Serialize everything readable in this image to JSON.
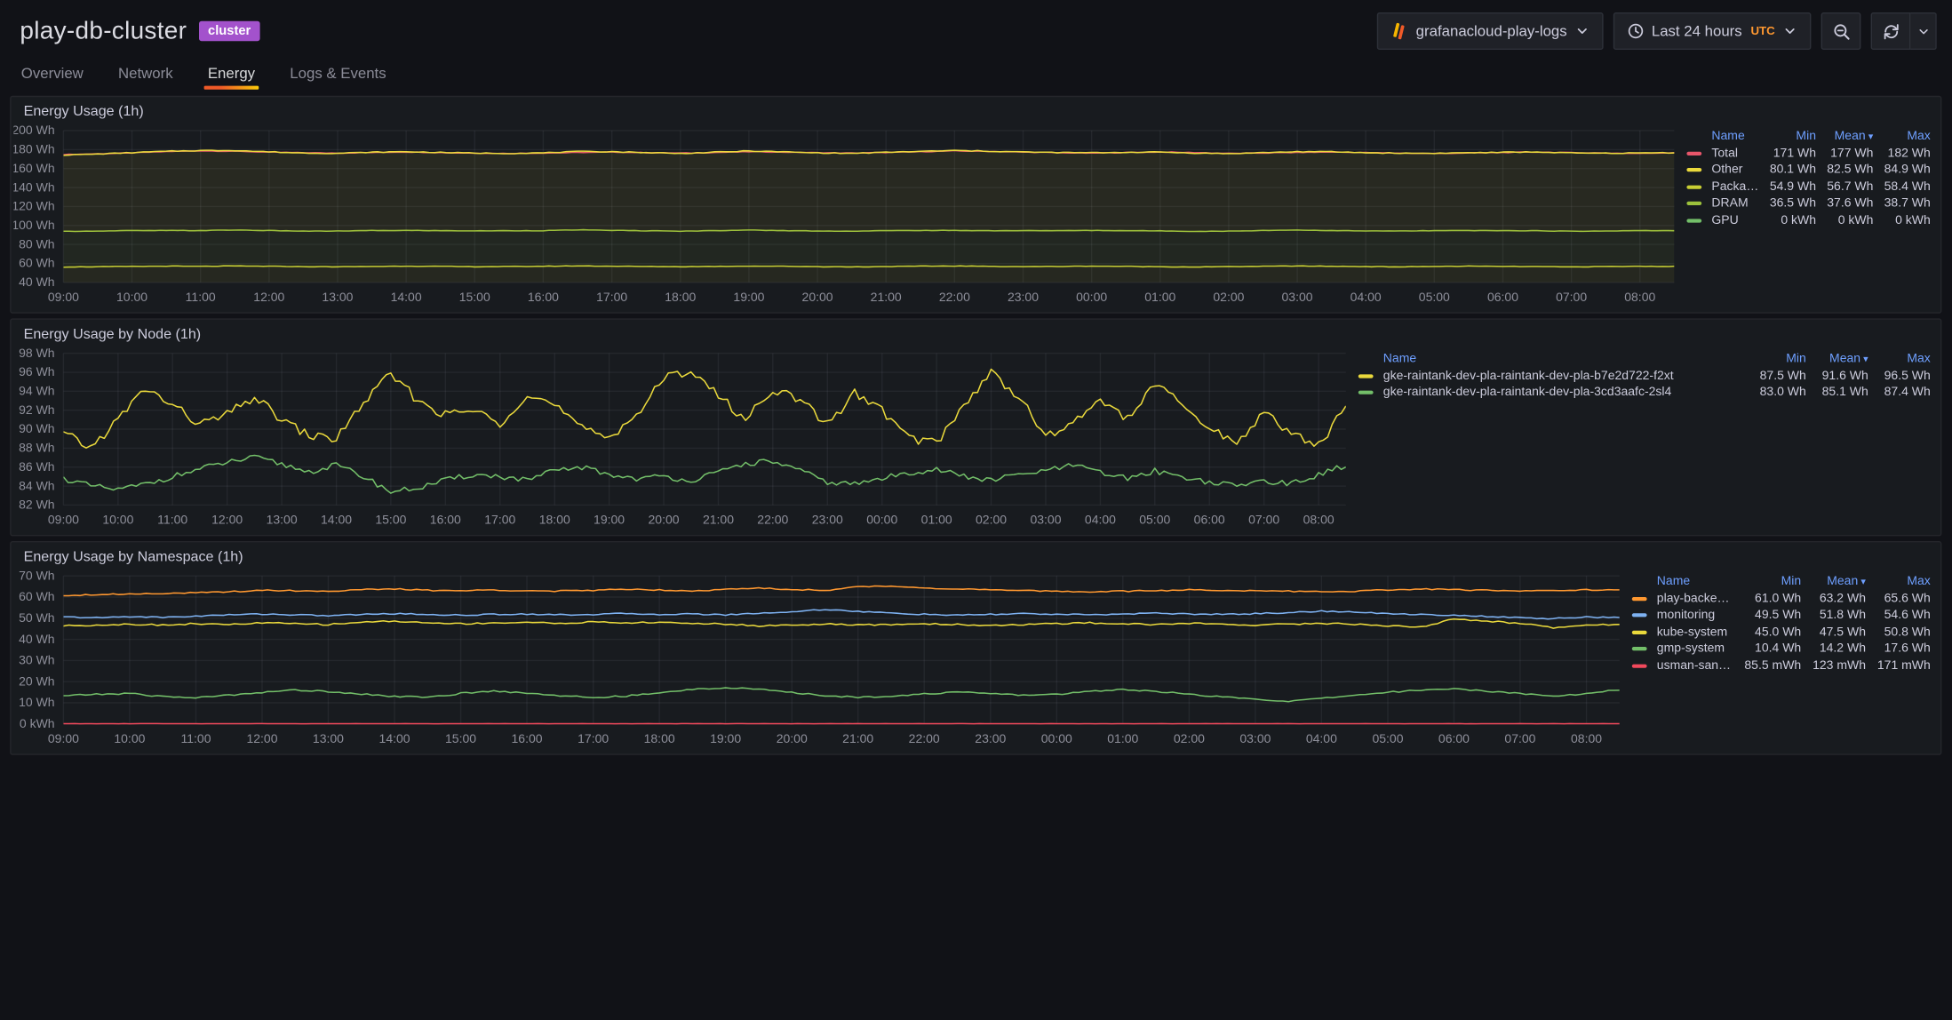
{
  "header": {
    "title": "play-db-cluster",
    "badge": "cluster",
    "datasource_label": "grafanacloud-play-logs",
    "time_range": "Last 24 hours",
    "timezone": "UTC"
  },
  "tabs": [
    {
      "id": "overview",
      "label": "Overview",
      "active": false
    },
    {
      "id": "network",
      "label": "Network",
      "active": false
    },
    {
      "id": "energy",
      "label": "Energy",
      "active": true
    },
    {
      "id": "logs-events",
      "label": "Logs & Events",
      "active": false
    }
  ],
  "colors": {
    "accent_orange": "#FF9830",
    "link_blue": "#6E9FFF",
    "badge_purple": "#A352CC",
    "panel_bg": "#181B1F",
    "page_bg": "#111217"
  },
  "legend_columns": [
    "Name",
    "Min",
    "Mean",
    "Max"
  ],
  "sort": {
    "column": "Mean",
    "dir": "desc"
  },
  "panels": [
    {
      "id": "energy-usage",
      "title": "Energy Usage (1h)",
      "legend_rows": [
        {
          "name": "Total",
          "color": "#E8566B",
          "min": "171 Wh",
          "mean": "177 Wh",
          "max": "182 Wh"
        },
        {
          "name": "Other",
          "color": "#EAD93C",
          "min": "80.1 Wh",
          "mean": "82.5 Wh",
          "max": "84.9 Wh"
        },
        {
          "name": "Package",
          "color": "#C9CF34",
          "min": "54.9 Wh",
          "mean": "56.7 Wh",
          "max": "58.4 Wh"
        },
        {
          "name": "DRAM",
          "color": "#9DC23C",
          "min": "36.5 Wh",
          "mean": "37.6 Wh",
          "max": "38.7 Wh"
        },
        {
          "name": "GPU",
          "color": "#73BF69",
          "min": "0 kWh",
          "mean": "0 kWh",
          "max": "0 kWh"
        }
      ]
    },
    {
      "id": "energy-usage-by-node",
      "title": "Energy Usage by Node (1h)",
      "legend_rows": [
        {
          "name": "gke-raintank-dev-pla-raintank-dev-pla-b7e2d722-f2xt",
          "color": "#EAD93C",
          "min": "87.5 Wh",
          "mean": "91.6 Wh",
          "max": "96.5 Wh"
        },
        {
          "name": "gke-raintank-dev-pla-raintank-dev-pla-3cd3aafc-2sl4",
          "color": "#73BF69",
          "min": "83.0 Wh",
          "mean": "85.1 Wh",
          "max": "87.4 Wh"
        }
      ]
    },
    {
      "id": "energy-usage-by-namespace",
      "title": "Energy Usage by Namespace (1h)",
      "legend_rows": [
        {
          "name": "play-backends",
          "color": "#FF9830",
          "min": "61.0 Wh",
          "mean": "63.2 Wh",
          "max": "65.6 Wh"
        },
        {
          "name": "monitoring",
          "color": "#7EB2F2",
          "min": "49.5 Wh",
          "mean": "51.8 Wh",
          "max": "54.6 Wh"
        },
        {
          "name": "kube-system",
          "color": "#EAD93C",
          "min": "45.0 Wh",
          "mean": "47.5 Wh",
          "max": "50.8 Wh"
        },
        {
          "name": "gmp-system",
          "color": "#73BF69",
          "min": "10.4 Wh",
          "mean": "14.2 Wh",
          "max": "17.6 Wh"
        },
        {
          "name": "usman-sandbox",
          "color": "#F2495C",
          "min": "85.5 mWh",
          "mean": "123 mWh",
          "max": "171 mWh"
        }
      ]
    }
  ],
  "chart_data": [
    {
      "type": "line",
      "title": "Energy Usage (1h)",
      "ylim": [
        40,
        200
      ],
      "x_span_hours": 23.5,
      "x_ticks": [
        "09:00",
        "10:00",
        "11:00",
        "12:00",
        "13:00",
        "14:00",
        "15:00",
        "16:00",
        "17:00",
        "18:00",
        "19:00",
        "20:00",
        "21:00",
        "22:00",
        "23:00",
        "00:00",
        "01:00",
        "02:00",
        "03:00",
        "04:00",
        "05:00",
        "06:00",
        "07:00",
        "08:00"
      ],
      "y_ticks": [
        {
          "label": "200 Wh",
          "value": 200
        },
        {
          "label": "180 Wh",
          "value": 180
        },
        {
          "label": "160 Wh",
          "value": 160
        },
        {
          "label": "140 Wh",
          "value": 140
        },
        {
          "label": "120 Wh",
          "value": 120
        },
        {
          "label": "100 Wh",
          "value": 100
        },
        {
          "label": "80 Wh",
          "value": 80
        },
        {
          "label": "60 Wh",
          "value": 60
        },
        {
          "label": "40 Wh",
          "value": 40
        }
      ],
      "series": [
        {
          "name": "Total",
          "color": "#E8566B",
          "jitter": 0.3,
          "values": [
            174.9,
            175.5,
            176.5,
            177.9,
            178.7,
            178.2,
            177.3,
            176.7,
            176.3,
            176.9,
            177.4,
            176.8,
            176.3,
            175.9,
            176.4,
            176.9,
            177.3,
            176.8,
            176.3,
            176.9,
            177.7,
            177.3,
            176.7,
            176.3,
            176.9,
            177.7,
            178.6,
            178.1,
            177.3,
            176.7,
            176.3,
            176.9,
            177.4,
            176.9,
            176.0,
            176.4,
            176.9,
            177.4,
            176.8,
            176.3,
            175.9,
            176.4,
            176.9,
            177.4,
            176.8,
            176.3,
            176.0,
            176.7
          ]
        },
        {
          "name": "GPU",
          "color": "#73BF69",
          "jitter": 0,
          "values": [
            0,
            0,
            0,
            0,
            0,
            0,
            0,
            0,
            0,
            0,
            0,
            0,
            0,
            0,
            0,
            0,
            0,
            0,
            0,
            0,
            0,
            0,
            0,
            0,
            0,
            0,
            0,
            0,
            0,
            0,
            0,
            0,
            0,
            0,
            0,
            0,
            0,
            0,
            0,
            0,
            0,
            0,
            0,
            0,
            0,
            0,
            0,
            0
          ]
        },
        {
          "name": "Package",
          "color": "#C9CF34",
          "stack_order": 1,
          "fill": 0.08,
          "jitter": 0.25,
          "values": [
            56.2,
            56.5,
            56.8,
            57.1,
            56.9,
            57.3,
            57.0,
            56.6,
            56.4,
            56.8,
            57.2,
            56.9,
            56.5,
            56.7,
            57.0,
            57.4,
            57.1,
            56.8,
            56.5,
            56.9,
            57.2,
            57.0,
            56.6,
            56.3,
            56.7,
            57.1,
            57.3,
            56.9,
            56.6,
            56.8,
            57.2,
            56.9,
            56.5,
            56.2,
            56.6,
            57.0,
            57.3,
            57.0,
            56.7,
            56.4,
            56.8,
            57.1,
            56.9,
            56.6,
            56.3,
            56.7,
            57.0,
            56.8
          ]
        },
        {
          "name": "DRAM",
          "color": "#9DC23C",
          "stack_order": 2,
          "fill": 0.08,
          "jitter": 0.2,
          "values": [
            37.5,
            37.6,
            37.8,
            37.5,
            37.7,
            37.9,
            37.6,
            37.4,
            37.7,
            37.8,
            37.5,
            37.6,
            37.8,
            37.7,
            37.5,
            37.9,
            37.7,
            37.6,
            37.4,
            37.7,
            37.9,
            37.6,
            37.5,
            37.7,
            37.8,
            37.6,
            37.4,
            37.6,
            37.9,
            37.7,
            37.5,
            37.6,
            37.8,
            37.5,
            37.4,
            37.7,
            37.9,
            37.6,
            37.5,
            37.8,
            37.7,
            37.5,
            37.6,
            37.8,
            37.6,
            37.4,
            37.7,
            37.6
          ]
        },
        {
          "name": "Other",
          "color": "#EAD93C",
          "stack_order": 3,
          "fill": 0.08,
          "jitter": 0.45,
          "values": [
            80.6,
            81.2,
            82.2,
            83.6,
            84.4,
            83.9,
            83.0,
            82.4,
            82.0,
            82.6,
            83.1,
            82.5,
            82.0,
            81.6,
            82.1,
            82.6,
            83.0,
            82.5,
            82.0,
            82.6,
            83.4,
            83.0,
            82.4,
            82.0,
            82.6,
            83.4,
            84.3,
            83.8,
            83.0,
            82.4,
            82.0,
            82.6,
            83.1,
            82.6,
            81.7,
            82.1,
            82.6,
            83.1,
            82.5,
            82.0,
            81.6,
            82.1,
            82.6,
            83.1,
            82.5,
            82.0,
            81.7,
            82.4
          ]
        }
      ]
    },
    {
      "type": "line",
      "title": "Energy Usage by Node (1h)",
      "ylim": [
        82,
        98
      ],
      "x_span_hours": 23.5,
      "x_ticks": [
        "09:00",
        "10:00",
        "11:00",
        "12:00",
        "13:00",
        "14:00",
        "15:00",
        "16:00",
        "17:00",
        "18:00",
        "19:00",
        "20:00",
        "21:00",
        "22:00",
        "23:00",
        "00:00",
        "01:00",
        "02:00",
        "03:00",
        "04:00",
        "05:00",
        "06:00",
        "07:00",
        "08:00"
      ],
      "y_ticks": [
        {
          "label": "98 Wh",
          "value": 98
        },
        {
          "label": "96 Wh",
          "value": 96
        },
        {
          "label": "94 Wh",
          "value": 94
        },
        {
          "label": "92 Wh",
          "value": 92
        },
        {
          "label": "90 Wh",
          "value": 90
        },
        {
          "label": "88 Wh",
          "value": 88
        },
        {
          "label": "86 Wh",
          "value": 86
        },
        {
          "label": "84 Wh",
          "value": 84
        },
        {
          "label": "82 Wh",
          "value": 82
        }
      ],
      "series": [
        {
          "name": "gke-raintank-dev-pla-raintank-dev-pla-b7e2d722-f2xt",
          "color": "#EAD93C",
          "jitter": 0.5,
          "values": [
            89.5,
            88.0,
            91.0,
            94.3,
            92.5,
            90.5,
            91.5,
            93.4,
            91.0,
            89.3,
            89.0,
            92.8,
            95.8,
            93.0,
            91.5,
            92.0,
            90.6,
            93.8,
            92.5,
            90.0,
            89.2,
            91.5,
            95.3,
            96.3,
            93.5,
            91.0,
            94.3,
            93.0,
            90.5,
            93.8,
            92.0,
            89.0,
            88.6,
            92.5,
            96.0,
            93.5,
            89.2,
            90.5,
            93.3,
            91.0,
            94.8,
            92.5,
            90.0,
            88.6,
            91.8,
            89.5,
            88.3,
            92.3
          ]
        },
        {
          "name": "gke-raintank-dev-pla-raintank-dev-pla-3cd3aafc-2sl4",
          "color": "#73BF69",
          "jitter": 0.3,
          "values": [
            84.8,
            84.0,
            83.6,
            84.2,
            85.0,
            85.8,
            86.5,
            87.0,
            86.3,
            85.5,
            86.2,
            85.0,
            83.4,
            83.8,
            84.6,
            85.2,
            85.0,
            84.6,
            85.6,
            86.0,
            85.2,
            84.8,
            85.0,
            84.6,
            85.4,
            86.4,
            86.6,
            85.6,
            84.4,
            84.2,
            84.8,
            85.4,
            85.8,
            85.0,
            84.6,
            85.2,
            85.6,
            86.2,
            85.4,
            84.8,
            85.6,
            85.0,
            84.4,
            84.0,
            84.6,
            84.2,
            85.2,
            86.2
          ]
        }
      ]
    },
    {
      "type": "line",
      "title": "Energy Usage by Namespace (1h)",
      "ylim": [
        0,
        70
      ],
      "x_span_hours": 23.5,
      "x_ticks": [
        "09:00",
        "10:00",
        "11:00",
        "12:00",
        "13:00",
        "14:00",
        "15:00",
        "16:00",
        "17:00",
        "18:00",
        "19:00",
        "20:00",
        "21:00",
        "22:00",
        "23:00",
        "00:00",
        "01:00",
        "02:00",
        "03:00",
        "04:00",
        "05:00",
        "06:00",
        "07:00",
        "08:00"
      ],
      "y_ticks": [
        {
          "label": "70 Wh",
          "value": 70
        },
        {
          "label": "60 Wh",
          "value": 60
        },
        {
          "label": "50 Wh",
          "value": 50
        },
        {
          "label": "40 Wh",
          "value": 40
        },
        {
          "label": "30 Wh",
          "value": 30
        },
        {
          "label": "20 Wh",
          "value": 20
        },
        {
          "label": "10 Wh",
          "value": 10
        },
        {
          "label": "0 kWh",
          "value": 0
        }
      ],
      "series": [
        {
          "name": "play-backends",
          "color": "#FF9830",
          "jitter": 0.3,
          "values": [
            60.8,
            61.2,
            61.5,
            61.8,
            62.0,
            62.5,
            63.3,
            63.0,
            62.8,
            63.5,
            63.8,
            63.2,
            63.0,
            63.4,
            63.0,
            62.8,
            63.2,
            63.8,
            63.4,
            63.0,
            63.6,
            64.2,
            63.6,
            63.2,
            64.8,
            65.2,
            64.4,
            63.8,
            63.4,
            63.0,
            62.8,
            62.5,
            62.8,
            63.0,
            63.4,
            63.2,
            63.0,
            62.8,
            62.5,
            62.8,
            63.4,
            63.8,
            63.4,
            63.2,
            63.0,
            63.2,
            63.4,
            63.2
          ]
        },
        {
          "name": "monitoring",
          "color": "#7EB2F2",
          "jitter": 0.3,
          "values": [
            50.6,
            50.2,
            50.8,
            50.4,
            51.0,
            51.6,
            52.0,
            51.6,
            51.2,
            51.8,
            52.2,
            51.8,
            51.4,
            51.8,
            52.0,
            51.6,
            51.8,
            52.2,
            51.8,
            52.0,
            51.6,
            52.4,
            53.0,
            54.2,
            53.2,
            52.4,
            51.8,
            51.4,
            51.8,
            52.2,
            51.8,
            51.6,
            52.0,
            52.4,
            52.0,
            51.8,
            52.2,
            52.6,
            53.4,
            52.8,
            52.2,
            51.8,
            51.4,
            50.8,
            50.2,
            49.8,
            50.6,
            50.2
          ]
        },
        {
          "name": "kube-system",
          "color": "#EAD93C",
          "jitter": 0.35,
          "values": [
            46.4,
            46.8,
            47.2,
            46.8,
            47.4,
            47.0,
            47.8,
            47.4,
            47.0,
            48.2,
            48.6,
            47.8,
            47.4,
            47.8,
            48.0,
            47.6,
            48.2,
            47.8,
            48.0,
            47.6,
            47.2,
            46.4,
            46.8,
            47.2,
            46.8,
            47.0,
            47.4,
            47.0,
            46.6,
            47.0,
            47.4,
            47.8,
            47.4,
            47.0,
            47.6,
            47.2,
            46.8,
            47.2,
            47.6,
            47.2,
            46.4,
            45.8,
            49.6,
            48.6,
            47.6,
            45.6,
            46.8,
            47.2
          ]
        },
        {
          "name": "gmp-system",
          "color": "#73BF69",
          "jitter": 0.35,
          "values": [
            13.4,
            14.0,
            14.4,
            13.0,
            12.4,
            13.6,
            15.0,
            16.0,
            15.4,
            14.2,
            13.0,
            12.6,
            14.4,
            15.6,
            14.6,
            13.4,
            12.4,
            13.2,
            14.6,
            16.4,
            17.2,
            16.4,
            14.8,
            13.4,
            12.6,
            13.2,
            14.2,
            15.0,
            14.4,
            13.6,
            14.0,
            15.4,
            16.4,
            15.4,
            14.0,
            12.8,
            11.6,
            10.8,
            12.0,
            13.6,
            15.0,
            16.0,
            16.6,
            15.6,
            14.4,
            13.2,
            14.4,
            16.2
          ]
        },
        {
          "name": "usman-sandbox",
          "color": "#F2495C",
          "jitter": 0.04,
          "values": [
            0.12,
            0.12,
            0.12,
            0.12,
            0.12,
            0.12,
            0.12,
            0.12,
            0.12,
            0.12,
            0.12,
            0.12,
            0.12,
            0.12,
            0.12,
            0.12,
            0.12,
            0.12,
            0.12,
            0.12,
            0.12,
            0.12,
            0.12,
            0.12,
            0.12,
            0.12,
            0.12,
            0.12,
            0.12,
            0.12,
            0.12,
            0.12,
            0.12,
            0.12,
            0.12,
            0.12,
            0.12,
            0.12,
            0.12,
            0.12,
            0.12,
            0.12,
            0.12,
            0.12,
            0.12,
            0.12,
            0.12,
            0.12
          ]
        }
      ]
    }
  ]
}
